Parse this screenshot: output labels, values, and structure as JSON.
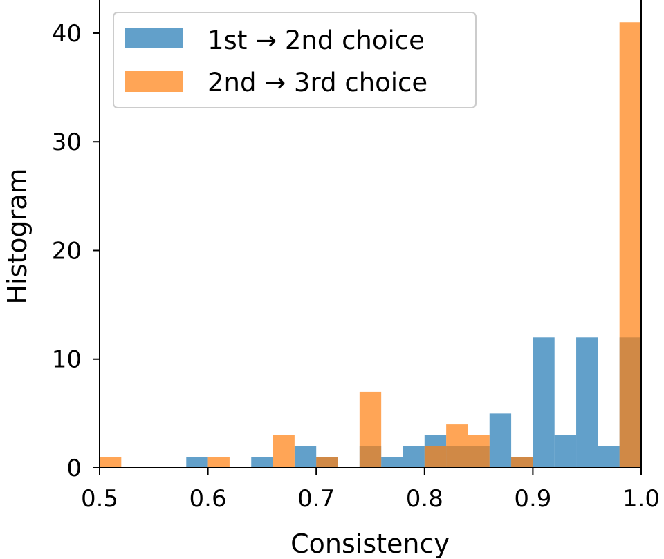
{
  "chart_data": {
    "type": "histogram",
    "xlabel": "Consistency",
    "ylabel": "Histogram",
    "xlim": [
      0.5,
      1.0
    ],
    "ylim": [
      0,
      43.05
    ],
    "x_ticks": [
      "0.5",
      "0.6",
      "0.7",
      "0.8",
      "0.9",
      "1.0"
    ],
    "y_ticks": [
      "0",
      "10",
      "20",
      "30",
      "40"
    ],
    "bin_width": 0.02,
    "bin_edges": [
      0.5,
      0.52,
      0.54,
      0.56,
      0.58,
      0.6,
      0.62,
      0.64,
      0.66,
      0.68,
      0.7,
      0.72,
      0.74,
      0.76,
      0.78,
      0.8,
      0.82,
      0.84,
      0.86,
      0.88,
      0.9,
      0.92,
      0.94,
      0.96,
      0.98,
      1.0
    ],
    "series": [
      {
        "name": "1st → 2nd choice",
        "color": "#1f77b4",
        "opacity": 0.7,
        "counts": [
          0,
          0,
          0,
          0,
          1,
          0,
          0,
          1,
          0,
          2,
          1,
          0,
          2,
          1,
          2,
          3,
          2,
          2,
          5,
          1,
          12,
          3,
          12,
          2,
          12
        ]
      },
      {
        "name": "2nd → 3rd choice",
        "color": "#ff7f0e",
        "opacity": 0.7,
        "counts": [
          1,
          0,
          0,
          0,
          0,
          1,
          0,
          0,
          3,
          0,
          1,
          0,
          7,
          0,
          0,
          2,
          4,
          3,
          0,
          1,
          0,
          0,
          0,
          0,
          41
        ]
      }
    ],
    "legend": {
      "position": "top-left",
      "frame": true
    },
    "grid": false
  }
}
